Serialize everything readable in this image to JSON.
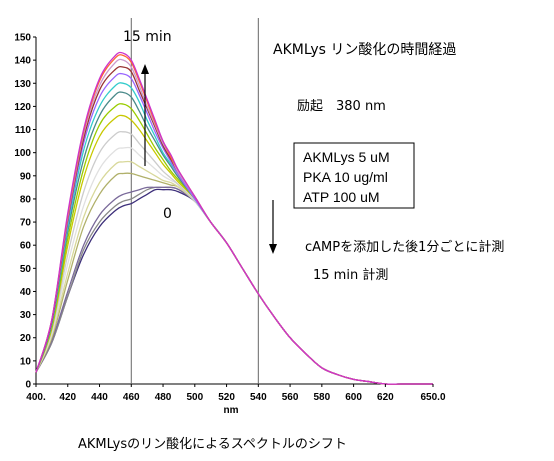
{
  "chart_data": {
    "type": "line",
    "xlabel": "nm",
    "ylabel": "",
    "xlim": [
      400,
      650
    ],
    "ylim": [
      0,
      150
    ],
    "x_ticks": [
      "400.",
      "420",
      "440",
      "460",
      "480",
      "500",
      "520",
      "540",
      "560",
      "580",
      "600",
      "620",
      "650.0"
    ],
    "x_tick_values": [
      400,
      420,
      440,
      460,
      480,
      500,
      520,
      540,
      560,
      580,
      600,
      620,
      650
    ],
    "y_ticks": [
      "0",
      "10",
      "20",
      "30",
      "40",
      "50",
      "60",
      "70",
      "80",
      "90",
      "100",
      "110",
      "120",
      "130",
      "140",
      "150"
    ],
    "y_tick_values": [
      0,
      10,
      20,
      30,
      40,
      50,
      60,
      70,
      80,
      90,
      100,
      110,
      120,
      130,
      140,
      150
    ],
    "vertical_lines_x": [
      460,
      540
    ],
    "x": [
      400,
      410,
      420,
      430,
      440,
      450,
      455,
      460,
      465,
      470,
      475,
      480,
      485,
      490,
      500,
      510,
      520,
      530,
      540,
      550,
      560,
      570,
      580,
      590,
      600,
      610,
      620,
      630,
      640,
      650
    ],
    "series": [
      {
        "color": "#3d2f7a",
        "values": [
          5,
          18,
          38,
          56,
          68,
          75,
          77,
          78,
          80,
          82,
          84,
          84,
          84,
          83,
          79,
          70,
          61,
          50,
          39,
          29,
          20,
          13,
          7,
          4,
          2,
          1,
          0,
          0,
          0,
          0
        ]
      },
      {
        "color": "#888888",
        "values": [
          5,
          18,
          38,
          58,
          70,
          77,
          79,
          80,
          82,
          84,
          85,
          85,
          85,
          84,
          79,
          70,
          61,
          50,
          39,
          29,
          20,
          13,
          7,
          4,
          2,
          1,
          0,
          0,
          0,
          0
        ]
      },
      {
        "color": "#7a6a9a",
        "values": [
          5,
          19,
          40,
          60,
          73,
          80,
          82,
          83,
          84,
          85,
          85,
          85,
          85,
          84,
          79,
          70,
          61,
          50,
          39,
          29,
          20,
          13,
          7,
          4,
          2,
          1,
          0,
          0,
          0,
          0
        ]
      },
      {
        "color": "#b0b06a",
        "values": [
          5,
          20,
          45,
          68,
          82,
          90,
          91,
          91,
          90,
          89,
          88,
          87,
          86,
          85,
          79,
          70,
          61,
          50,
          39,
          29,
          20,
          13,
          7,
          4,
          2,
          1,
          0,
          0,
          0,
          0
        ]
      },
      {
        "color": "#d8d89a",
        "values": [
          5,
          21,
          48,
          72,
          87,
          95,
          96,
          96,
          94,
          92,
          90,
          88,
          87,
          85,
          79,
          70,
          61,
          50,
          39,
          29,
          20,
          13,
          7,
          4,
          2,
          1,
          0,
          0,
          0,
          0
        ]
      },
      {
        "color": "#e0e0e0",
        "values": [
          5,
          22,
          52,
          77,
          93,
          101,
          102,
          102,
          99,
          96,
          93,
          90,
          88,
          86,
          79,
          70,
          61,
          50,
          39,
          29,
          20,
          13,
          7,
          4,
          2,
          1,
          0,
          0,
          0,
          0
        ]
      },
      {
        "color": "#cccccc",
        "values": [
          5,
          23,
          56,
          83,
          100,
          108,
          109,
          108,
          104,
          100,
          96,
          92,
          89,
          86,
          79,
          70,
          61,
          50,
          39,
          29,
          20,
          13,
          7,
          4,
          2,
          1,
          0,
          0,
          0,
          0
        ]
      },
      {
        "color": "#c8c800",
        "values": [
          5,
          24,
          60,
          89,
          107,
          115,
          116,
          114,
          110,
          105,
          100,
          95,
          91,
          87,
          80,
          70,
          61,
          50,
          39,
          29,
          20,
          13,
          7,
          4,
          2,
          1,
          0,
          0,
          0,
          0
        ]
      },
      {
        "color": "#99cc00",
        "values": [
          5,
          25,
          63,
          93,
          112,
          120,
          121,
          119,
          114,
          108,
          102,
          97,
          92,
          88,
          80,
          70,
          61,
          50,
          39,
          29,
          20,
          13,
          7,
          4,
          2,
          1,
          0,
          0,
          0,
          0
        ]
      },
      {
        "color": "#4a8a8a",
        "values": [
          5,
          26,
          66,
          97,
          116,
          125,
          126,
          124,
          118,
          111,
          105,
          99,
          94,
          89,
          80,
          70,
          61,
          50,
          39,
          29,
          20,
          13,
          7,
          4,
          2,
          1,
          0,
          0,
          0,
          0
        ]
      },
      {
        "color": "#33cccc",
        "values": [
          5,
          26,
          68,
          101,
          120,
          129,
          130,
          128,
          122,
          114,
          107,
          100,
          95,
          90,
          80,
          70,
          61,
          50,
          39,
          29,
          20,
          13,
          7,
          4,
          2,
          1,
          0,
          0,
          0,
          0
        ]
      },
      {
        "color": "#9966ff",
        "values": [
          5,
          27,
          70,
          104,
          124,
          133,
          134,
          132,
          125,
          117,
          109,
          102,
          96,
          90,
          80,
          70,
          61,
          50,
          39,
          29,
          20,
          13,
          7,
          4,
          2,
          1,
          0,
          0,
          0,
          0
        ]
      },
      {
        "color": "#993333",
        "values": [
          5,
          27,
          71,
          106,
          127,
          136,
          137,
          135,
          127,
          119,
          111,
          103,
          97,
          91,
          81,
          70,
          61,
          50,
          39,
          29,
          20,
          13,
          7,
          4,
          2,
          1,
          0,
          0,
          0,
          0
        ]
      },
      {
        "color": "#cc99cc",
        "values": [
          5,
          28,
          72,
          108,
          129,
          139,
          140,
          137,
          129,
          120,
          112,
          104,
          98,
          91,
          81,
          70,
          61,
          50,
          39,
          29,
          20,
          13,
          7,
          4,
          2,
          1,
          0,
          0,
          0,
          0
        ]
      },
      {
        "color": "#ff6633",
        "values": [
          5,
          28,
          73,
          109,
          131,
          141,
          142,
          139,
          131,
          122,
          113,
          105,
          98,
          92,
          81,
          70,
          61,
          50,
          39,
          29,
          20,
          13,
          7,
          4,
          2,
          1,
          0,
          0,
          0,
          0
        ]
      },
      {
        "color": "#cc33cc",
        "values": [
          5,
          28,
          74,
          110,
          132,
          142,
          143,
          140,
          132,
          123,
          114,
          105,
          99,
          92,
          81,
          70,
          61,
          50,
          39,
          29,
          20,
          13,
          7,
          4,
          2,
          1,
          0,
          0,
          0,
          0
        ]
      }
    ],
    "annotations": {
      "top_label": "15 min",
      "bottom_label": "0",
      "title_jp": "AKMLys リン酸化の時間経過",
      "excitation": "励起　380 nm",
      "box_lines": [
        "AKMLys 5 uM",
        "PKA 10 ug/ml",
        "ATP 100 uM"
      ],
      "note1": "cAMPを添加した後1分ごとに計測",
      "note2": "15 min 計測",
      "caption": "AKMLysのリン酸化によるスペクトルのシフト"
    }
  }
}
